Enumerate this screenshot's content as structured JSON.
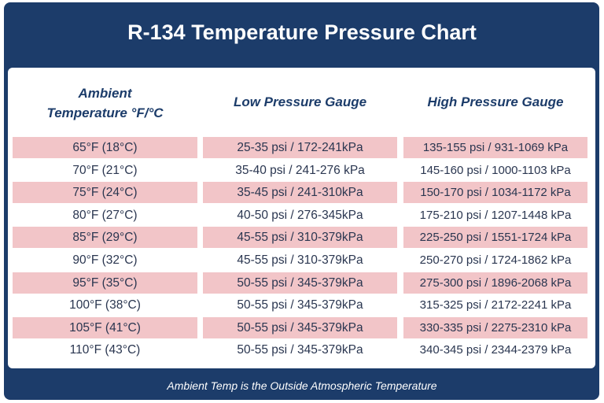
{
  "chart_data": {
    "type": "table",
    "title": "R-134 Temperature Pressure Chart",
    "columns": [
      "Ambient Temperature °F/°C",
      "Low Pressure Gauge",
      "High Pressure Gauge"
    ],
    "rows": [
      [
        "65°F (18°C)",
        "25-35 psi / 172-241kPa",
        "135-155 psi / 931-1069 kPa"
      ],
      [
        "70°F (21°C)",
        "35-40 psi / 241-276 kPa",
        "145-160 psi / 1000-1103 kPa"
      ],
      [
        "75°F (24°C)",
        "35-45 psi / 241-310kPa",
        "150-170 psi / 1034-1172 kPa"
      ],
      [
        "80°F (27°C)",
        "40-50 psi / 276-345kPa",
        "175-210 psi / 1207-1448 kPa"
      ],
      [
        "85°F (29°C)",
        "45-55 psi / 310-379kPa",
        "225-250 psi / 1551-1724 kPa"
      ],
      [
        "90°F (32°C)",
        "45-55 psi / 310-379kPa",
        "250-270 psi / 1724-1862 kPa"
      ],
      [
        "95°F (35°C)",
        "50-55 psi / 345-379kPa",
        "275-300 psi / 1896-2068 kPa"
      ],
      [
        "100°F (38°C)",
        "50-55 psi / 345-379kPa",
        "315-325 psi / 2172-2241 kPa"
      ],
      [
        "105°F (41°C)",
        "50-55 psi / 345-379kPa",
        "330-335 psi / 2275-2310 kPa"
      ],
      [
        "110°F (43°C)",
        "50-55 psi / 345-379kPa",
        "340-345 psi / 2344-2379 kPa"
      ]
    ],
    "footnote": "Ambient Temp is the Outside Atmospheric Temperature"
  },
  "header": {
    "col0_line1": "Ambient",
    "col0_line2": "Temperature °F/°C"
  },
  "colors": {
    "navy": "#1c3c6a",
    "highlight": "#f2c5c8",
    "text": "#2a3650"
  }
}
